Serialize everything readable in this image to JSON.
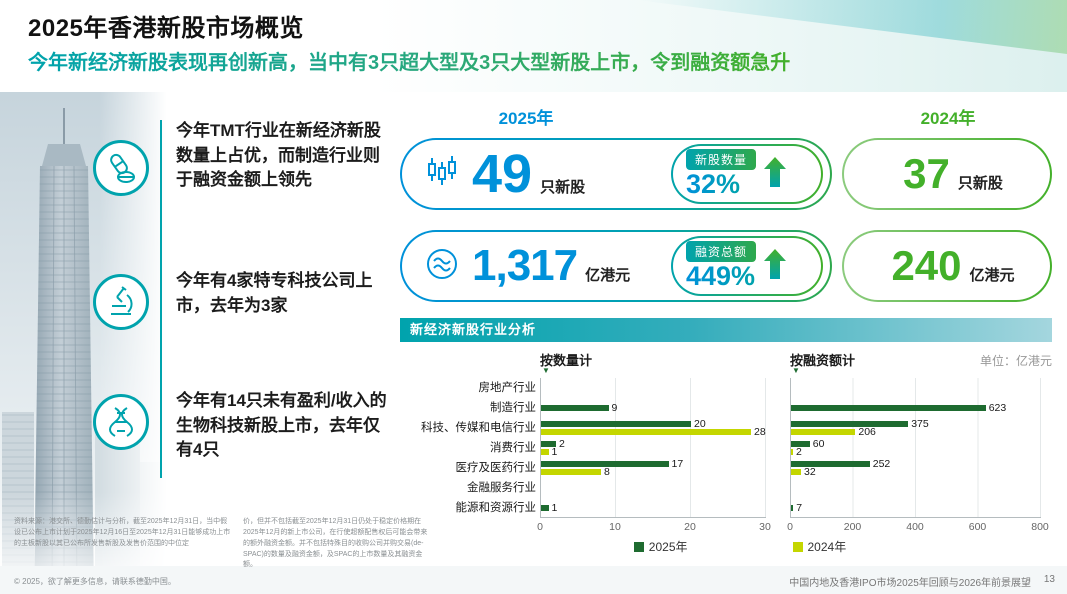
{
  "slide": {
    "title": "2025年香港新股市场概览",
    "subtitle": "今年新经济新股表现再创新高，当中有3只超大型及3只大型新股上市，令到融资额急升",
    "footer_title": "中国内地及香港IPO市场2025年回顾与2026年前景展望",
    "page_number": "13"
  },
  "highlights": [
    {
      "icon": "pills-icon",
      "text": "今年TMT行业在新经济新股数量上占优，而制造行业则于融资金额上领先"
    },
    {
      "icon": "microscope-icon",
      "text": "今年有4家特专科技公司上市，去年为3家"
    },
    {
      "icon": "dna-icon",
      "text": "今年有14只未有盈利/收入的生物科技新股上市，去年仅有4只"
    }
  ],
  "stats": {
    "year_2025_label": "2025年",
    "year_2024_label": "2024年",
    "rows": [
      {
        "icon": "candlestick-chart-icon",
        "value_2025": "49",
        "unit_2025": "只新股",
        "change_label": "新股数量",
        "change_value": "32%",
        "trend": "up",
        "value_2024": "37",
        "unit_2024": "只新股"
      },
      {
        "icon": "currency-circle-icon",
        "value_2025": "1,317",
        "unit_2025": "亿港元",
        "change_label": "融资总额",
        "change_value": "449%",
        "trend": "up",
        "value_2024": "240",
        "unit_2024": "亿港元"
      }
    ]
  },
  "section": {
    "title": "新经济新股行业分析",
    "unit_note": "单位：亿港元"
  },
  "chart_data": [
    {
      "type": "bar",
      "orientation": "horizontal",
      "title": "按数量计",
      "categories": [
        "房地产行业",
        "制造行业",
        "科技、传媒和电信行业",
        "消费行业",
        "医疗及医药行业",
        "金融服务行业",
        "能源和资源行业"
      ],
      "series": [
        {
          "name": "2025年",
          "color": "#1E6B30",
          "values": [
            null,
            9,
            20,
            2,
            17,
            null,
            1
          ]
        },
        {
          "name": "2024年",
          "color": "#C4D600",
          "values": [
            null,
            null,
            28,
            1,
            8,
            null,
            null
          ]
        }
      ],
      "xlim": [
        0,
        30
      ],
      "xticks": [
        0,
        10,
        20,
        30
      ],
      "grid": true,
      "legend_position": "bottom"
    },
    {
      "type": "bar",
      "orientation": "horizontal",
      "title": "按融资额计",
      "unit": "亿港元",
      "categories": [
        "房地产行业",
        "制造行业",
        "科技、传媒和电信行业",
        "消费行业",
        "医疗及医药行业",
        "金融服务行业",
        "能源和资源行业"
      ],
      "series": [
        {
          "name": "2025年",
          "color": "#1E6B30",
          "values": [
            null,
            623,
            375,
            60,
            252,
            null,
            7
          ]
        },
        {
          "name": "2024年",
          "color": "#C4D600",
          "values": [
            null,
            null,
            206,
            2,
            32,
            null,
            null
          ]
        }
      ],
      "xlim": [
        0,
        800
      ],
      "xticks": [
        0,
        200,
        400,
        600,
        800
      ],
      "grid": true,
      "legend_position": "bottom"
    }
  ],
  "footer": {
    "source_note": "资料来源：港交所、德勤估计与分析，截至2025年12月31日，当中假设已公布上市计划于2025年12月16日至2025年12月31日能够成功上市的主板新股以其已公布所发售新股及发售价范围的中位定",
    "note_2": "价，但并不包括截至2025年12月31日仍处于稳定价格期在2025年12月的新上市公司，在行使超额配售权后可能会带来的额外融资金额。并不包括特殊目的收购公司并购交易(de-SPAC)的数量及融资金额，及SPAC的上市数量及其融资金额。",
    "copyright": "© 2025，欲了解更多信息，请联系德勤中国。"
  },
  "colors": {
    "accent_teal": "#00A3AD",
    "blue_2025": "#0091DA",
    "green_2024": "#43B02A",
    "bar_2025": "#1E6B30",
    "bar_2024": "#C4D600"
  }
}
